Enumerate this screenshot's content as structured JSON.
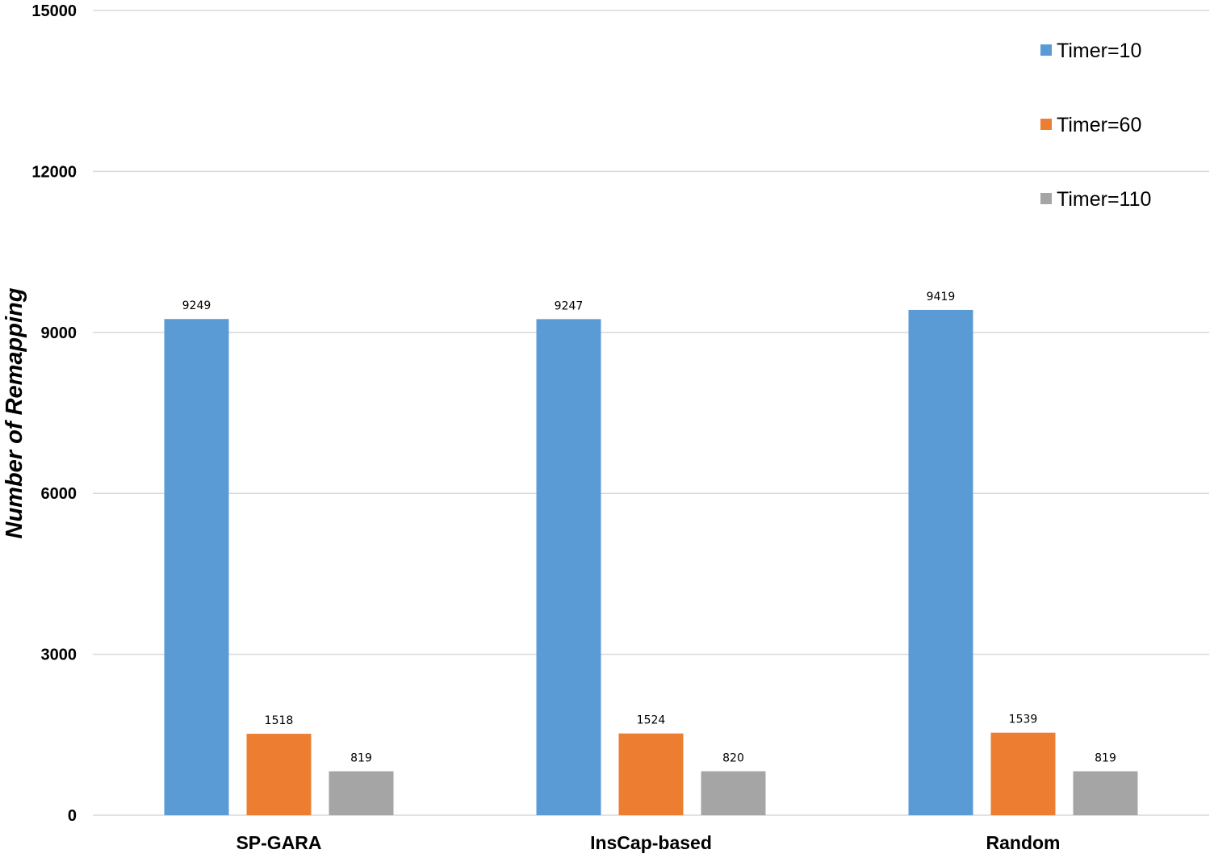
{
  "chart_data": {
    "type": "bar",
    "ylabel": "Number of Remapping",
    "ylim": [
      0,
      15000
    ],
    "yticks": [
      0,
      3000,
      6000,
      9000,
      12000,
      15000
    ],
    "grid": true,
    "legend_position": "top-right",
    "categories": [
      "SP-GARA",
      "InsCap-based",
      "Random"
    ],
    "series": [
      {
        "name": "Timer=10",
        "color": "#5B9BD5",
        "values": [
          9249,
          9247,
          9419
        ]
      },
      {
        "name": "Timer=60",
        "color": "#ED7D31",
        "values": [
          1518,
          1524,
          1539
        ]
      },
      {
        "name": "Timer=110",
        "color": "#A5A5A5",
        "values": [
          819,
          820,
          819
        ]
      }
    ]
  }
}
